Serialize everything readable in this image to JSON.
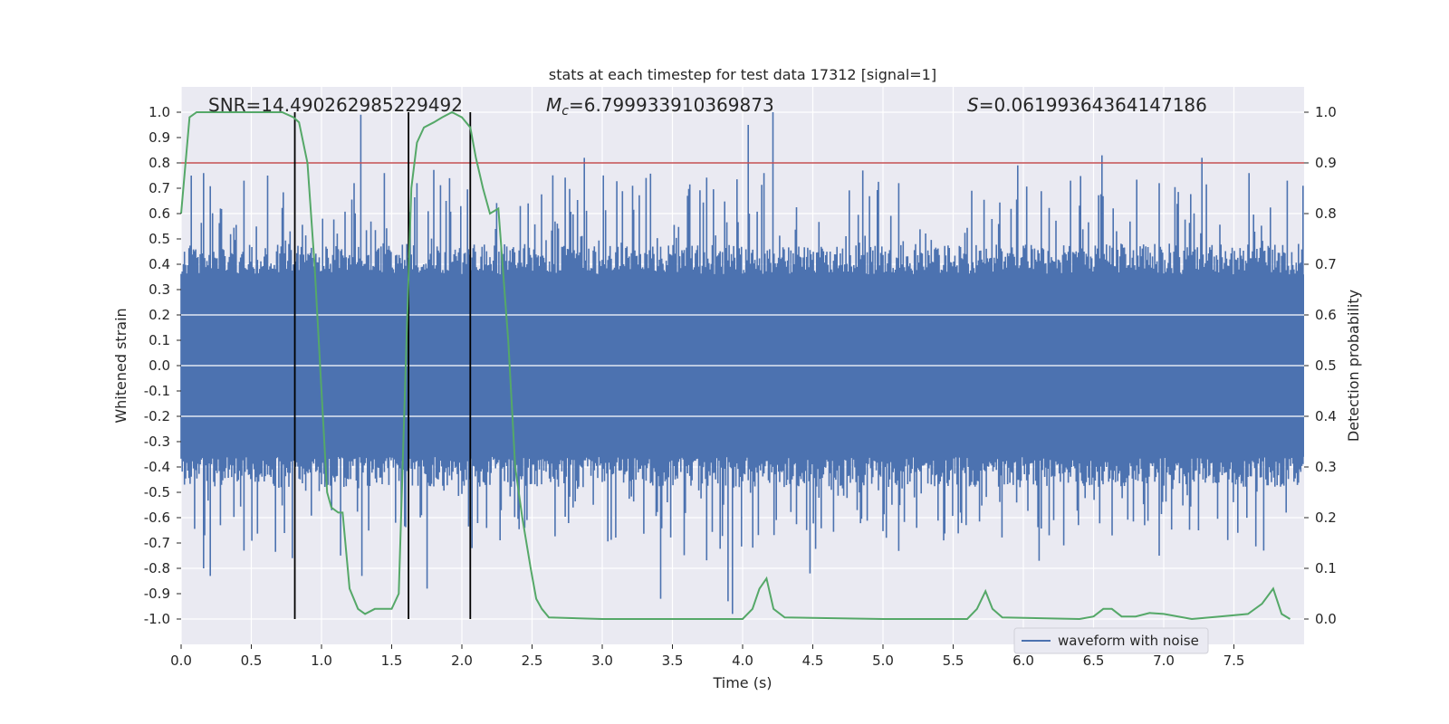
{
  "chart_data": {
    "type": "line",
    "title": "stats at each timestep for test data 17312 [signal=1]",
    "xlabel": "Time (s)",
    "ylabel": "Whitened strain",
    "y2label": "Detection probability",
    "xlim": [
      0.0,
      8.0
    ],
    "ylim": [
      -1.1,
      1.1
    ],
    "y2lim": [
      -0.05,
      1.05
    ],
    "xticks": [
      "0.0",
      "0.5",
      "1.0",
      "1.5",
      "2.0",
      "2.5",
      "3.0",
      "3.5",
      "4.0",
      "4.5",
      "5.0",
      "5.5",
      "6.0",
      "6.5",
      "7.0",
      "7.5"
    ],
    "yticks": [
      "1.0",
      "0.9",
      "0.8",
      "0.7",
      "0.6",
      "0.5",
      "0.4",
      "0.3",
      "0.2",
      "0.1",
      "0.0",
      "-0.1",
      "-0.2",
      "-0.3",
      "-0.4",
      "-0.5",
      "-0.6",
      "-0.7",
      "-0.8",
      "-0.9",
      "-1.0"
    ],
    "y2ticks": [
      "1.0",
      "0.9",
      "0.8",
      "0.7",
      "0.6",
      "0.5",
      "0.4",
      "0.3",
      "0.2",
      "0.1",
      "0.0"
    ],
    "annotations": {
      "snr": "SNR=14.490262985229492",
      "mc_symbol": "M",
      "mc_sub": "c",
      "mc_value": "=6.799933910369873",
      "s_symbol": "S",
      "s_value": "=0.06199364364147186"
    },
    "threshold": {
      "y": 0.8,
      "color": "#c44e52"
    },
    "vertical_lines": [
      0.81,
      1.62,
      2.06
    ],
    "legend": {
      "label": "waveform with noise",
      "loc": "lower-right"
    },
    "grid": true,
    "series": [
      {
        "name": "waveform with noise",
        "color": "#4c72b0",
        "axis": "left",
        "envelope_approx": {
          "sample_spacing": 0.008,
          "typical_band": [
            -0.4,
            0.4
          ],
          "peaks": [
            [
              0.02,
              0.7
            ],
            [
              0.07,
              0.75
            ],
            [
              0.16,
              0.76
            ],
            [
              0.28,
              0.62
            ],
            [
              0.45,
              0.73
            ],
            [
              0.62,
              0.75
            ],
            [
              0.78,
              0.53
            ],
            [
              1.01,
              0.58
            ],
            [
              1.23,
              0.72
            ],
            [
              1.28,
              0.99
            ],
            [
              1.45,
              0.76
            ],
            [
              1.68,
              0.72
            ],
            [
              1.89,
              0.65
            ],
            [
              2.47,
              0.64
            ],
            [
              2.87,
              0.82
            ],
            [
              3.22,
              0.71
            ],
            [
              3.61,
              0.67
            ],
            [
              4.04,
              0.95
            ],
            [
              4.22,
              1.0
            ],
            [
              4.15,
              0.76
            ],
            [
              4.86,
              0.77
            ],
            [
              5.63,
              0.69
            ],
            [
              5.96,
              0.79
            ],
            [
              6.34,
              0.73
            ],
            [
              6.56,
              0.83
            ],
            [
              6.97,
              0.72
            ],
            [
              7.27,
              0.82
            ],
            [
              7.61,
              0.76
            ],
            [
              7.88,
              0.73
            ],
            [
              7.99,
              0.71
            ]
          ],
          "troughs": [
            [
              0.02,
              -0.43
            ],
            [
              0.16,
              -0.8
            ],
            [
              0.21,
              -0.83
            ],
            [
              0.28,
              -0.63
            ],
            [
              0.45,
              -0.73
            ],
            [
              0.79,
              -0.76
            ],
            [
              1.29,
              -0.83
            ],
            [
              1.53,
              -0.62
            ],
            [
              1.75,
              -0.88
            ],
            [
              2.07,
              -0.72
            ],
            [
              3.42,
              -0.92
            ],
            [
              3.9,
              -0.93
            ],
            [
              3.93,
              -0.98
            ],
            [
              4.48,
              -0.82
            ],
            [
              5.24,
              -0.64
            ],
            [
              6.11,
              -0.77
            ],
            [
              6.63,
              -0.67
            ],
            [
              6.97,
              -0.75
            ],
            [
              7.53,
              -0.66
            ],
            [
              7.71,
              -0.73
            ],
            [
              7.87,
              -0.58
            ]
          ]
        }
      },
      {
        "name": "",
        "color": "#55a868",
        "axis": "right",
        "points": [
          [
            0.0,
            0.8
          ],
          [
            0.06,
            0.99
          ],
          [
            0.11,
            1.0
          ],
          [
            0.3,
            1.0
          ],
          [
            0.5,
            1.0
          ],
          [
            0.65,
            1.0
          ],
          [
            0.72,
            1.0
          ],
          [
            0.8,
            0.99
          ],
          [
            0.84,
            0.98
          ],
          [
            0.9,
            0.9
          ],
          [
            0.95,
            0.7
          ],
          [
            1.0,
            0.45
          ],
          [
            1.04,
            0.25
          ],
          [
            1.07,
            0.22
          ],
          [
            1.12,
            0.21
          ],
          [
            1.15,
            0.21
          ],
          [
            1.2,
            0.06
          ],
          [
            1.26,
            0.02
          ],
          [
            1.31,
            0.01
          ],
          [
            1.38,
            0.02
          ],
          [
            1.45,
            0.02
          ],
          [
            1.5,
            0.02
          ],
          [
            1.55,
            0.05
          ],
          [
            1.6,
            0.5
          ],
          [
            1.64,
            0.85
          ],
          [
            1.68,
            0.94
          ],
          [
            1.73,
            0.97
          ],
          [
            1.8,
            0.98
          ],
          [
            1.86,
            0.99
          ],
          [
            1.93,
            1.0
          ],
          [
            2.0,
            0.99
          ],
          [
            2.06,
            0.97
          ],
          [
            2.1,
            0.91
          ],
          [
            2.15,
            0.85
          ],
          [
            2.2,
            0.8
          ],
          [
            2.26,
            0.81
          ],
          [
            2.33,
            0.55
          ],
          [
            2.38,
            0.3
          ],
          [
            2.43,
            0.2
          ],
          [
            2.49,
            0.1
          ],
          [
            2.53,
            0.04
          ],
          [
            2.57,
            0.02
          ],
          [
            2.62,
            0.003
          ],
          [
            3.0,
            0.0
          ],
          [
            3.5,
            0.0
          ],
          [
            3.9,
            0.0
          ],
          [
            4.0,
            0.0
          ],
          [
            4.07,
            0.02
          ],
          [
            4.12,
            0.06
          ],
          [
            4.17,
            0.08
          ],
          [
            4.22,
            0.02
          ],
          [
            4.3,
            0.003
          ],
          [
            5.0,
            0.0
          ],
          [
            5.6,
            0.0
          ],
          [
            5.67,
            0.02
          ],
          [
            5.73,
            0.055
          ],
          [
            5.78,
            0.02
          ],
          [
            5.85,
            0.003
          ],
          [
            6.4,
            0.0
          ],
          [
            6.5,
            0.005
          ],
          [
            6.57,
            0.02
          ],
          [
            6.63,
            0.02
          ],
          [
            6.7,
            0.005
          ],
          [
            6.8,
            0.005
          ],
          [
            6.9,
            0.012
          ],
          [
            7.0,
            0.01
          ],
          [
            7.2,
            0.0
          ],
          [
            7.4,
            0.005
          ],
          [
            7.6,
            0.01
          ],
          [
            7.7,
            0.03
          ],
          [
            7.78,
            0.06
          ],
          [
            7.84,
            0.01
          ],
          [
            7.9,
            0.0
          ]
        ]
      }
    ]
  }
}
